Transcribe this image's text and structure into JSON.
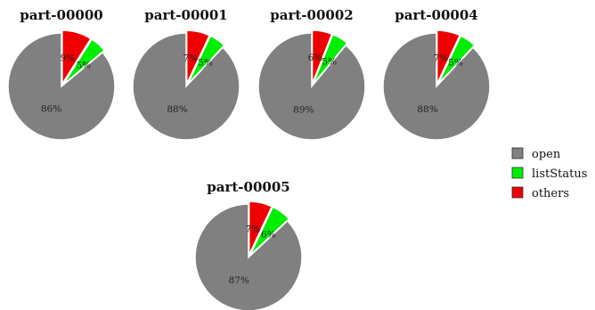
{
  "chart_data": [
    {
      "type": "pie",
      "title": "part-00000",
      "categories": [
        "open",
        "listStatus",
        "others"
      ],
      "values": [
        86,
        5,
        9
      ],
      "labels": [
        "86%",
        "5%",
        "9%"
      ]
    },
    {
      "type": "pie",
      "title": "part-00001",
      "categories": [
        "open",
        "listStatus",
        "others"
      ],
      "values": [
        88,
        5,
        7
      ],
      "labels": [
        "88%",
        "5%",
        "7%"
      ]
    },
    {
      "type": "pie",
      "title": "part-00002",
      "categories": [
        "open",
        "listStatus",
        "others"
      ],
      "values": [
        89,
        5,
        6
      ],
      "labels": [
        "89%",
        "5%",
        "6%"
      ]
    },
    {
      "type": "pie",
      "title": "part-00004",
      "categories": [
        "open",
        "listStatus",
        "others"
      ],
      "values": [
        88,
        5,
        7
      ],
      "labels": [
        "88%",
        "5%",
        "7%"
      ]
    },
    {
      "type": "pie",
      "title": "part-00005",
      "categories": [
        "open",
        "listStatus",
        "others"
      ],
      "values": [
        87,
        6,
        7
      ],
      "labels": [
        "87%",
        "6%",
        "7%"
      ]
    }
  ],
  "legend": {
    "placement": "right",
    "items": [
      {
        "label": "open",
        "color": "#808080"
      },
      {
        "label": "listStatus",
        "color": "#00ee00"
      },
      {
        "label": "others",
        "color": "#ee0000"
      }
    ]
  },
  "colors": {
    "open": "#808080",
    "listStatus": "#00ee00",
    "others": "#ee0000"
  }
}
